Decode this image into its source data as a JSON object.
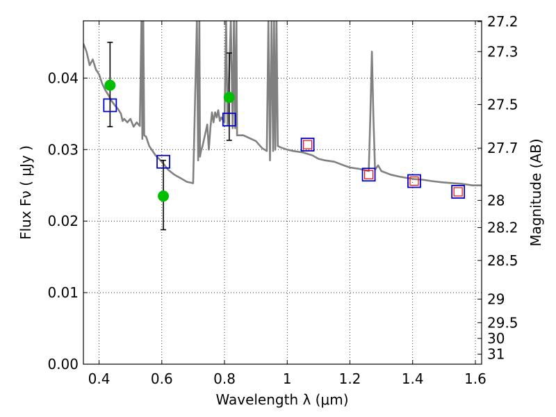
{
  "chart_data": {
    "type": "scatter",
    "title": "",
    "xlabel": "Wavelength  λ (μm)",
    "ylabel": "Flux  Fν  ( μJy )",
    "y2label": "Magnitude (AB)",
    "xlim": [
      0.35,
      1.62
    ],
    "ylim": [
      0.0,
      0.048
    ],
    "grid": true,
    "x_ticks": [
      0.4,
      0.6,
      0.8,
      1.0,
      1.2,
      1.4,
      1.6
    ],
    "x_tick_labels": [
      "0.4",
      "0.6",
      "0.8",
      "1",
      "1.2",
      "1.4",
      "1.6"
    ],
    "y_ticks": [
      0.0,
      0.01,
      0.02,
      0.03,
      0.04
    ],
    "y_tick_labels": [
      "0.00",
      "0.01",
      "0.02",
      "0.03",
      "0.04"
    ],
    "y2_ticks": [
      {
        "label": "27.2",
        "flux": 0.0479
      },
      {
        "label": "27.3",
        "flux": 0.0437
      },
      {
        "label": "27.5",
        "flux": 0.0363
      },
      {
        "label": "27.7",
        "flux": 0.0302
      },
      {
        "label": "28",
        "flux": 0.0229
      },
      {
        "label": "28.2",
        "flux": 0.0191
      },
      {
        "label": "28.5",
        "flux": 0.0145
      },
      {
        "label": "29",
        "flux": 0.0091
      },
      {
        "label": "29.5",
        "flux": 0.0058
      },
      {
        "label": "30",
        "flux": 0.0036
      },
      {
        "label": "31",
        "flux": 0.0014
      }
    ],
    "series": [
      {
        "type": "line",
        "color": "#808080",
        "x": [
          0.35,
          0.36,
          0.37,
          0.38,
          0.39,
          0.4,
          0.41,
          0.42,
          0.43,
          0.44,
          0.45,
          0.46,
          0.47,
          0.475,
          0.48,
          0.49,
          0.5,
          0.51,
          0.52,
          0.53,
          0.535,
          0.538,
          0.541,
          0.544,
          0.55,
          0.56,
          0.58,
          0.6,
          0.62,
          0.64,
          0.66,
          0.68,
          0.7,
          0.712,
          0.716,
          0.72,
          0.722,
          0.725,
          0.73,
          0.74,
          0.745,
          0.75,
          0.755,
          0.76,
          0.765,
          0.77,
          0.775,
          0.78,
          0.785,
          0.79,
          0.8,
          0.805,
          0.81,
          0.82,
          0.826,
          0.83,
          0.834,
          0.838,
          0.84,
          0.86,
          0.88,
          0.9,
          0.92,
          0.935,
          0.94,
          0.945,
          0.95,
          0.955,
          0.958,
          0.962,
          0.966,
          0.97,
          0.98,
          1.0,
          1.02,
          1.05,
          1.08,
          1.1,
          1.12,
          1.15,
          1.18,
          1.2,
          1.23,
          1.26,
          1.265,
          1.27,
          1.275,
          1.28,
          1.29,
          1.3,
          1.33,
          1.36,
          1.4,
          1.43,
          1.46,
          1.5,
          1.53,
          1.56,
          1.59,
          1.62
        ],
        "y": [
          0.0448,
          0.0437,
          0.0418,
          0.0426,
          0.0412,
          0.0405,
          0.0392,
          0.0383,
          0.0376,
          0.0368,
          0.0362,
          0.0357,
          0.035,
          0.034,
          0.0343,
          0.0338,
          0.0343,
          0.0332,
          0.0338,
          0.0333,
          0.048,
          0.0315,
          0.048,
          0.032,
          0.0318,
          0.0305,
          0.0292,
          0.0283,
          0.0272,
          0.0265,
          0.026,
          0.0255,
          0.0253,
          0.048,
          0.0285,
          0.048,
          0.029,
          0.0298,
          0.0305,
          0.0325,
          0.0335,
          0.03,
          0.033,
          0.0352,
          0.0338,
          0.0352,
          0.0345,
          0.0355,
          0.034,
          0.0345,
          0.0338,
          0.048,
          0.0335,
          0.048,
          0.033,
          0.048,
          0.033,
          0.048,
          0.032,
          0.032,
          0.0316,
          0.0312,
          0.0302,
          0.0298,
          0.048,
          0.0285,
          0.048,
          0.0298,
          0.048,
          0.03,
          0.048,
          0.0305,
          0.0303,
          0.03,
          0.0298,
          0.0296,
          0.0292,
          0.0287,
          0.0285,
          0.0283,
          0.0278,
          0.0275,
          0.0273,
          0.027,
          0.0345,
          0.0437,
          0.0345,
          0.0272,
          0.0278,
          0.027,
          0.0265,
          0.0262,
          0.0259,
          0.0258,
          0.0256,
          0.0254,
          0.0253,
          0.0252,
          0.025,
          0.025
        ]
      },
      {
        "type": "scatter",
        "marker": "circle",
        "color": "#00bf00",
        "x": [
          0.435,
          0.605,
          0.815
        ],
        "y": [
          0.039,
          0.0235,
          0.0373
        ],
        "yerr_low": [
          0.0332,
          0.0188,
          0.0313
        ],
        "yerr_high": [
          0.045,
          0.0285,
          0.0435
        ]
      },
      {
        "type": "scatter",
        "marker": "open-square",
        "color": "#0000cc",
        "x": [
          0.435,
          0.605,
          0.815,
          1.065,
          1.26,
          1.405,
          1.545
        ],
        "y": [
          0.0362,
          0.0283,
          0.0342,
          0.0307,
          0.0265,
          0.0256,
          0.0241
        ]
      },
      {
        "type": "scatter",
        "marker": "small-open-square",
        "color": "#ff0000",
        "x": [
          1.065,
          1.26,
          1.405,
          1.545
        ],
        "y": [
          0.0307,
          0.0265,
          0.0256,
          0.0241
        ]
      }
    ]
  }
}
